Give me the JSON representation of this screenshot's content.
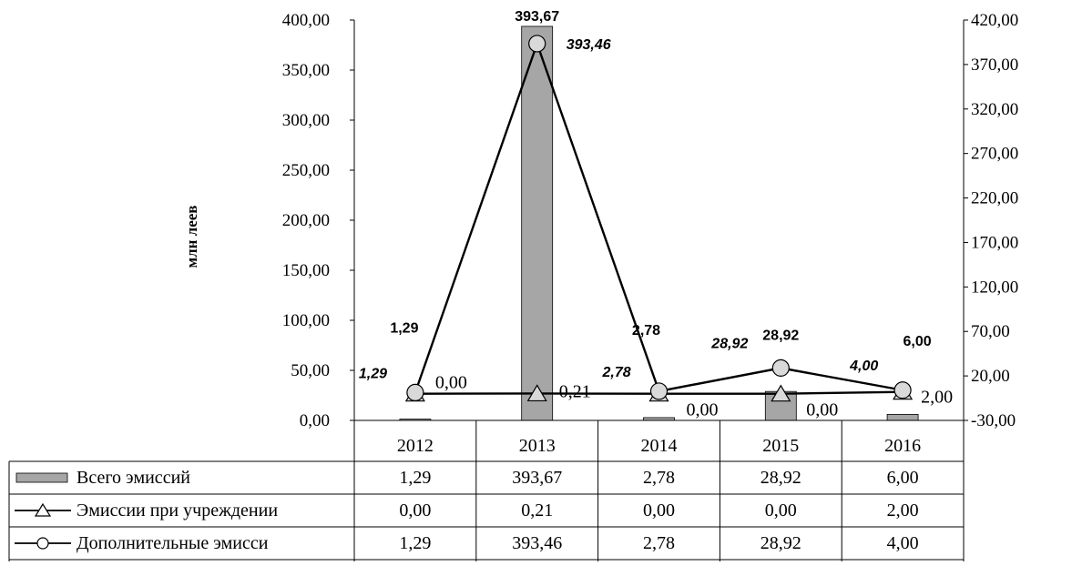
{
  "chart_data": {
    "type": "bar",
    "ylabel": "млн леев",
    "categories": [
      "2012",
      "2013",
      "2014",
      "2015",
      "2016"
    ],
    "left_axis": {
      "ylim": [
        0,
        400
      ],
      "ticks": [
        "0,00",
        "50,00",
        "100,00",
        "150,00",
        "200,00",
        "250,00",
        "300,00",
        "350,00",
        "400,00"
      ]
    },
    "right_axis": {
      "ylim": [
        -30,
        420
      ],
      "ticks": [
        "-30,00",
        "20,00",
        "70,00",
        "120,00",
        "170,00",
        "220,00",
        "270,00",
        "320,00",
        "370,00",
        "420,00"
      ]
    },
    "series": [
      {
        "name": "Всего эмиссий",
        "type": "bar",
        "axis": "left",
        "color": "#a6a6a6",
        "values": [
          1.29,
          393.67,
          2.78,
          28.92,
          6.0
        ],
        "labels": [
          "1,29",
          "393,67",
          "2,78",
          "28,92",
          "6,00"
        ],
        "table_values": [
          "1,29",
          "393,67",
          "2,78",
          "28,92",
          "6,00"
        ]
      },
      {
        "name": "Эмиссии при учреждении",
        "type": "line",
        "marker": "triangle",
        "axis": "right",
        "values": [
          0.0,
          0.21,
          0.0,
          0.0,
          2.0
        ],
        "labels": [
          "0,00",
          "0,21",
          "0,00",
          "0,00",
          "2,00"
        ],
        "table_values": [
          "0,00",
          "0,21",
          "0,00",
          "0,00",
          "2,00"
        ]
      },
      {
        "name": "Дополнительные эмисси",
        "type": "line",
        "marker": "circle",
        "axis": "right",
        "values": [
          1.29,
          393.46,
          2.78,
          28.92,
          4.0
        ],
        "labels": [
          "1,29",
          "393,46",
          "2,78",
          "28,92",
          "4,00"
        ],
        "table_values": [
          "1,29",
          "393,46",
          "2,78",
          "28,92",
          "4,00"
        ]
      }
    ],
    "grid": false,
    "legend": "data-table-below"
  }
}
